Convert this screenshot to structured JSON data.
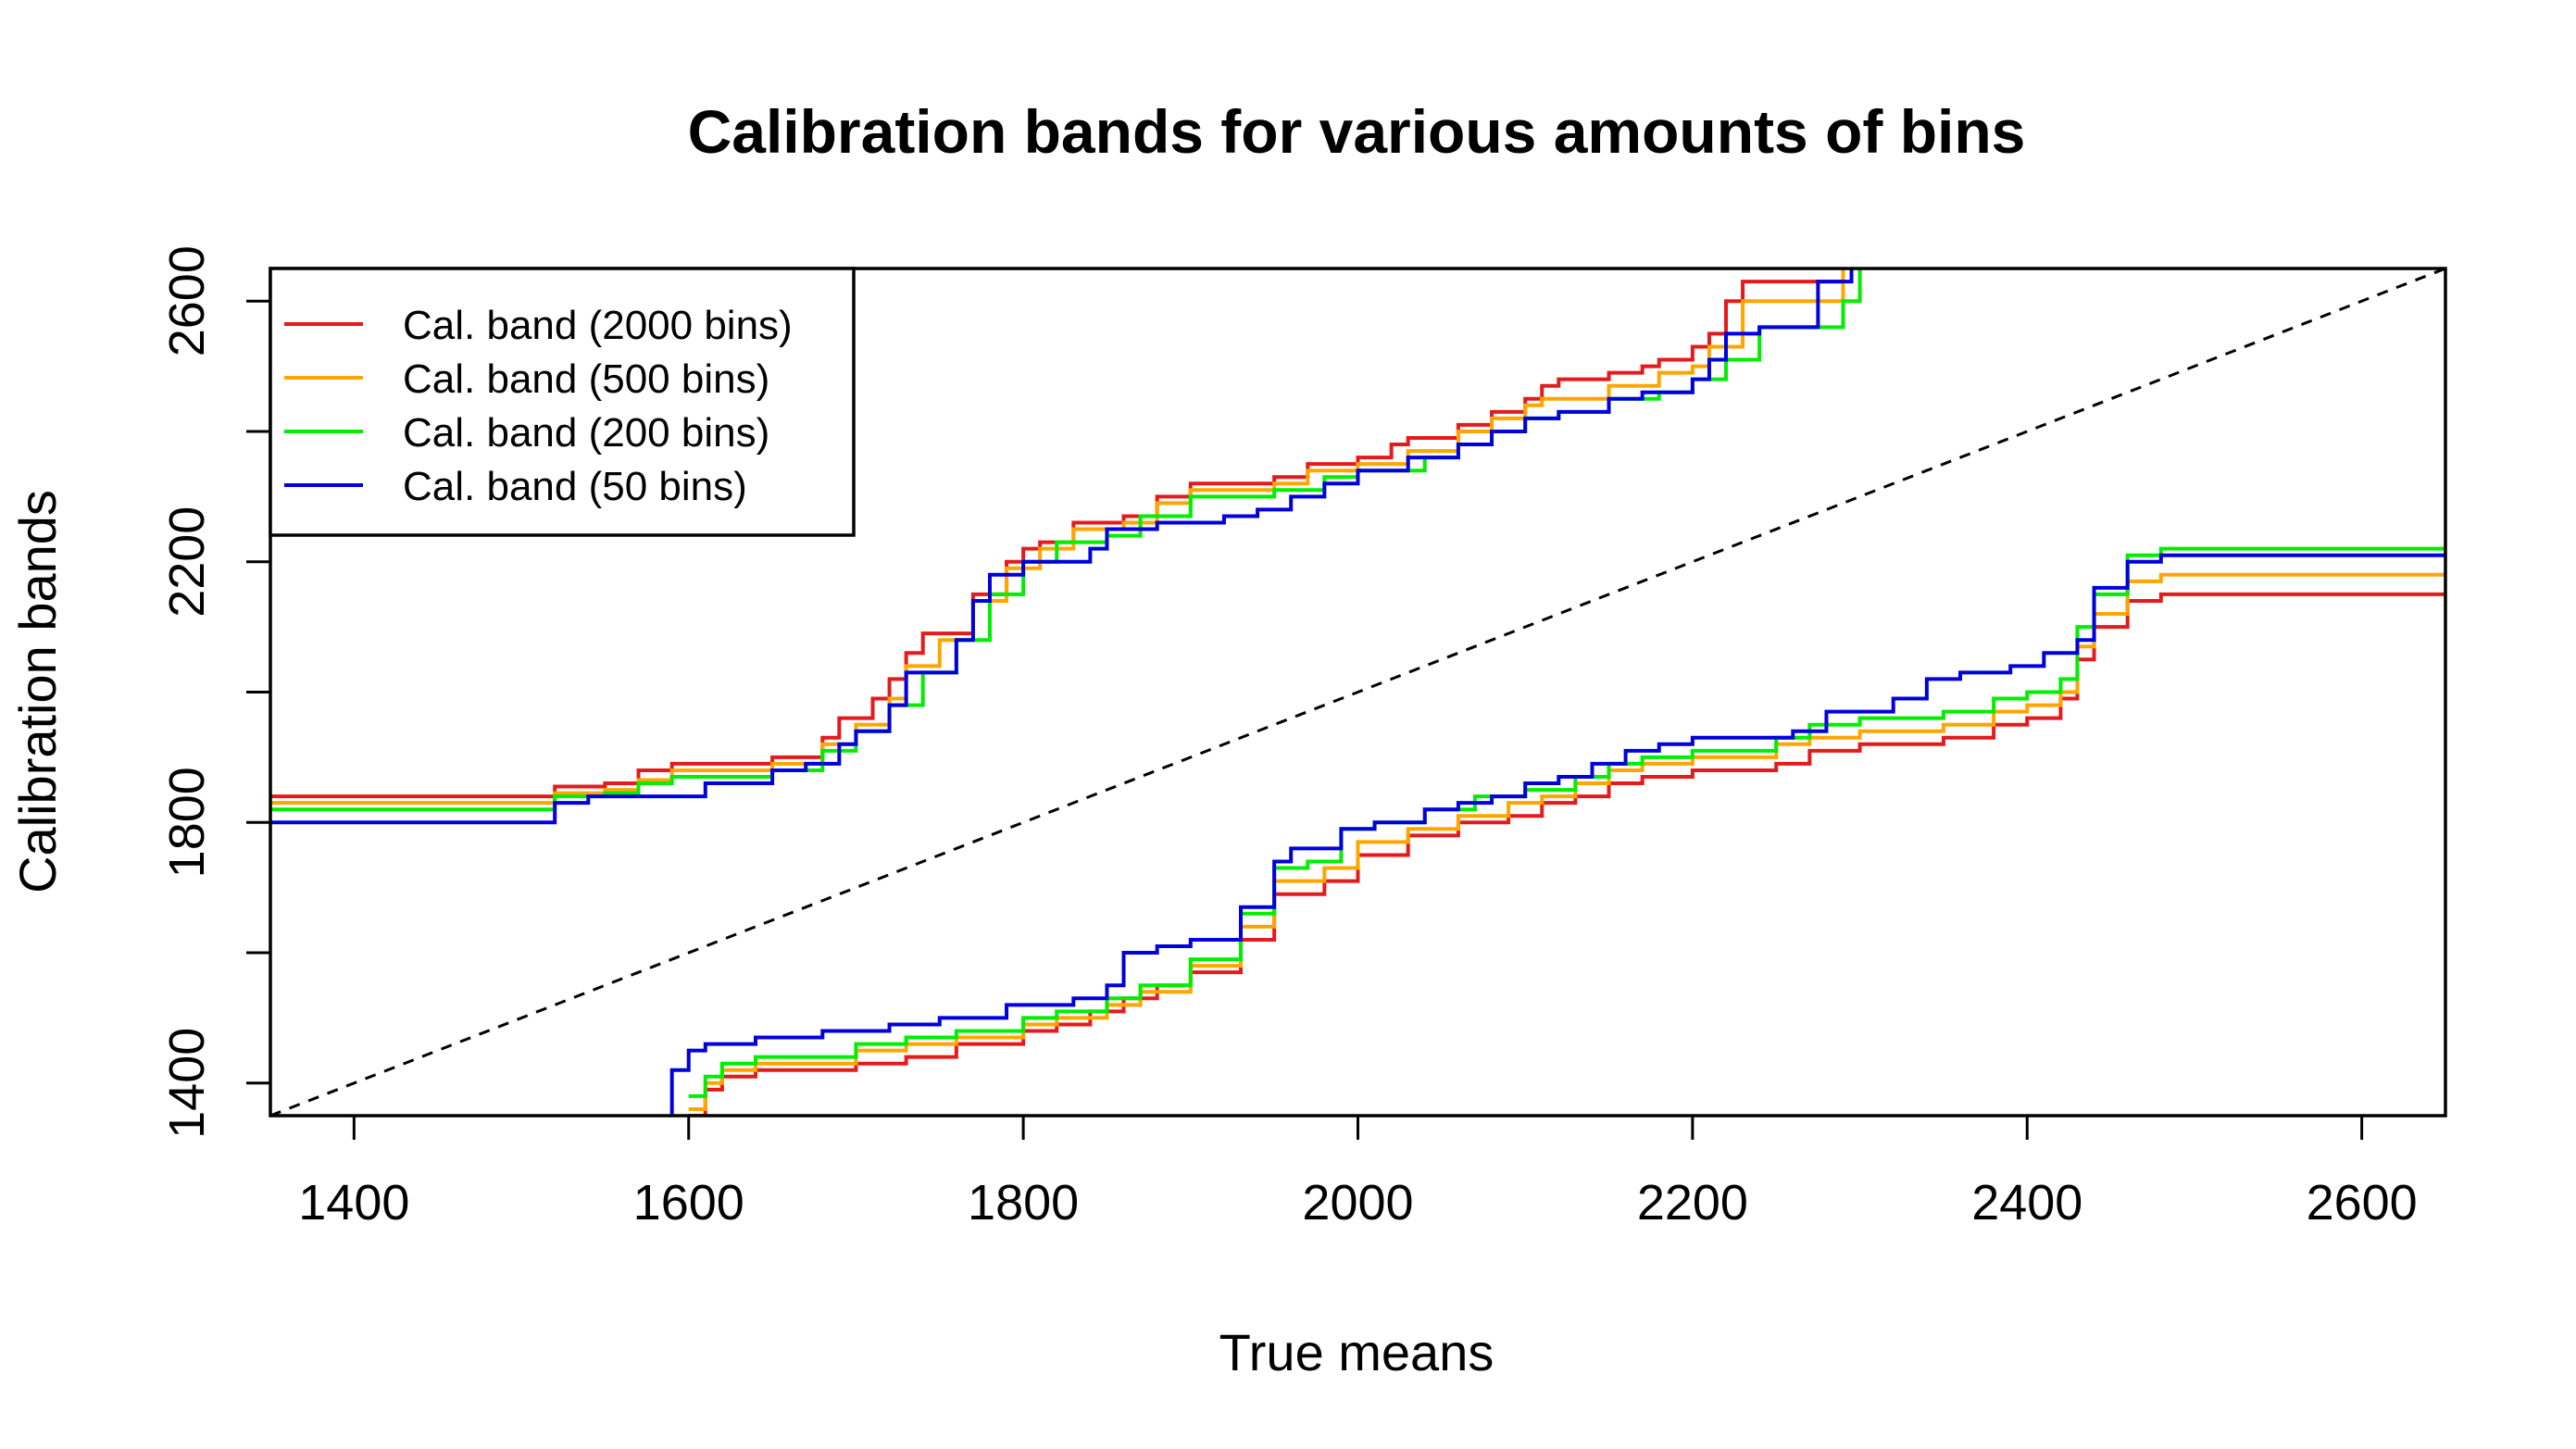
{
  "chart_data": {
    "type": "line",
    "title": "Calibration bands for various amounts of bins",
    "xlabel": "True means",
    "ylabel": "Calibration bands",
    "xlim": [
      1350,
      2650
    ],
    "ylim": [
      1350,
      2650
    ],
    "x_ticks": [
      1400,
      1600,
      1800,
      2000,
      2200,
      2400,
      2600
    ],
    "y_ticks": [
      1400,
      1600,
      1800,
      2000,
      2200,
      2400,
      2600
    ],
    "x_tick_labels": [
      "1400",
      "1600",
      "1800",
      "2000",
      "2200",
      "2400",
      "2600"
    ],
    "y_tick_labels": [
      "1400",
      "",
      "1800",
      "",
      "2200",
      "",
      "2600"
    ],
    "legend_position": "top-left",
    "grid": false,
    "reference_line": {
      "style": "dashed",
      "color": "#000000",
      "from": [
        1350,
        1350
      ],
      "to": [
        2650,
        2650
      ]
    },
    "series": [
      {
        "name": "Cal. band (2000 bins)",
        "color": "#e41a1c",
        "upper": [
          [
            1350,
            1840
          ],
          [
            1500,
            1840
          ],
          [
            1520,
            1855
          ],
          [
            1550,
            1860
          ],
          [
            1570,
            1880
          ],
          [
            1590,
            1890
          ],
          [
            1650,
            1900
          ],
          [
            1680,
            1930
          ],
          [
            1690,
            1960
          ],
          [
            1710,
            1990
          ],
          [
            1720,
            2020
          ],
          [
            1730,
            2060
          ],
          [
            1740,
            2090
          ],
          [
            1770,
            2150
          ],
          [
            1790,
            2200
          ],
          [
            1800,
            2220
          ],
          [
            1810,
            2230
          ],
          [
            1830,
            2260
          ],
          [
            1860,
            2270
          ],
          [
            1880,
            2300
          ],
          [
            1900,
            2320
          ],
          [
            1950,
            2330
          ],
          [
            1970,
            2350
          ],
          [
            2000,
            2360
          ],
          [
            2020,
            2380
          ],
          [
            2030,
            2390
          ],
          [
            2060,
            2410
          ],
          [
            2080,
            2430
          ],
          [
            2100,
            2450
          ],
          [
            2110,
            2470
          ],
          [
            2120,
            2480
          ],
          [
            2150,
            2490
          ],
          [
            2170,
            2500
          ],
          [
            2180,
            2510
          ],
          [
            2200,
            2530
          ],
          [
            2210,
            2550
          ],
          [
            2220,
            2600
          ],
          [
            2230,
            2630
          ],
          [
            2290,
            2650
          ]
        ],
        "lower": [
          [
            1600,
            1350
          ],
          [
            1610,
            1390
          ],
          [
            1620,
            1410
          ],
          [
            1640,
            1420
          ],
          [
            1700,
            1430
          ],
          [
            1730,
            1440
          ],
          [
            1760,
            1460
          ],
          [
            1800,
            1480
          ],
          [
            1820,
            1490
          ],
          [
            1840,
            1510
          ],
          [
            1860,
            1530
          ],
          [
            1880,
            1550
          ],
          [
            1900,
            1570
          ],
          [
            1930,
            1620
          ],
          [
            1950,
            1690
          ],
          [
            1980,
            1710
          ],
          [
            2000,
            1750
          ],
          [
            2030,
            1780
          ],
          [
            2060,
            1800
          ],
          [
            2090,
            1810
          ],
          [
            2110,
            1830
          ],
          [
            2130,
            1840
          ],
          [
            2150,
            1860
          ],
          [
            2170,
            1870
          ],
          [
            2200,
            1880
          ],
          [
            2250,
            1890
          ],
          [
            2270,
            1910
          ],
          [
            2300,
            1920
          ],
          [
            2350,
            1930
          ],
          [
            2380,
            1950
          ],
          [
            2400,
            1960
          ],
          [
            2420,
            1990
          ],
          [
            2430,
            2050
          ],
          [
            2440,
            2100
          ],
          [
            2460,
            2140
          ],
          [
            2480,
            2150
          ],
          [
            2650,
            2150
          ]
        ]
      },
      {
        "name": "Cal. band (500 bins)",
        "color": "#ffa500",
        "upper": [
          [
            1350,
            1830
          ],
          [
            1500,
            1830
          ],
          [
            1520,
            1845
          ],
          [
            1550,
            1850
          ],
          [
            1570,
            1865
          ],
          [
            1590,
            1880
          ],
          [
            1650,
            1890
          ],
          [
            1680,
            1920
          ],
          [
            1700,
            1950
          ],
          [
            1720,
            1990
          ],
          [
            1730,
            2040
          ],
          [
            1750,
            2080
          ],
          [
            1770,
            2140
          ],
          [
            1790,
            2190
          ],
          [
            1810,
            2220
          ],
          [
            1830,
            2250
          ],
          [
            1860,
            2260
          ],
          [
            1880,
            2290
          ],
          [
            1900,
            2310
          ],
          [
            1950,
            2320
          ],
          [
            1970,
            2340
          ],
          [
            2000,
            2350
          ],
          [
            2030,
            2370
          ],
          [
            2060,
            2400
          ],
          [
            2080,
            2420
          ],
          [
            2100,
            2440
          ],
          [
            2110,
            2450
          ],
          [
            2150,
            2470
          ],
          [
            2180,
            2490
          ],
          [
            2200,
            2500
          ],
          [
            2210,
            2530
          ],
          [
            2230,
            2600
          ],
          [
            2280,
            2600
          ],
          [
            2290,
            2650
          ]
        ],
        "lower": [
          [
            1600,
            1360
          ],
          [
            1610,
            1400
          ],
          [
            1620,
            1420
          ],
          [
            1640,
            1430
          ],
          [
            1700,
            1450
          ],
          [
            1730,
            1460
          ],
          [
            1760,
            1470
          ],
          [
            1800,
            1490
          ],
          [
            1820,
            1500
          ],
          [
            1850,
            1520
          ],
          [
            1870,
            1540
          ],
          [
            1900,
            1580
          ],
          [
            1930,
            1640
          ],
          [
            1950,
            1710
          ],
          [
            1980,
            1730
          ],
          [
            2000,
            1770
          ],
          [
            2030,
            1790
          ],
          [
            2060,
            1810
          ],
          [
            2090,
            1830
          ],
          [
            2110,
            1840
          ],
          [
            2130,
            1860
          ],
          [
            2150,
            1880
          ],
          [
            2170,
            1890
          ],
          [
            2200,
            1900
          ],
          [
            2250,
            1920
          ],
          [
            2270,
            1930
          ],
          [
            2300,
            1940
          ],
          [
            2350,
            1950
          ],
          [
            2380,
            1970
          ],
          [
            2400,
            1980
          ],
          [
            2420,
            2000
          ],
          [
            2430,
            2070
          ],
          [
            2440,
            2120
          ],
          [
            2460,
            2170
          ],
          [
            2480,
            2180
          ],
          [
            2650,
            2180
          ]
        ]
      },
      {
        "name": "Cal. band (200 bins)",
        "color": "#00ee00",
        "upper": [
          [
            1350,
            1820
          ],
          [
            1500,
            1820
          ],
          [
            1520,
            1840
          ],
          [
            1550,
            1845
          ],
          [
            1570,
            1860
          ],
          [
            1590,
            1870
          ],
          [
            1650,
            1880
          ],
          [
            1680,
            1910
          ],
          [
            1700,
            1940
          ],
          [
            1720,
            1980
          ],
          [
            1740,
            2030
          ],
          [
            1760,
            2080
          ],
          [
            1780,
            2150
          ],
          [
            1800,
            2200
          ],
          [
            1820,
            2230
          ],
          [
            1850,
            2240
          ],
          [
            1870,
            2270
          ],
          [
            1900,
            2300
          ],
          [
            1950,
            2310
          ],
          [
            1980,
            2330
          ],
          [
            2000,
            2340
          ],
          [
            2040,
            2360
          ],
          [
            2060,
            2380
          ],
          [
            2080,
            2400
          ],
          [
            2100,
            2420
          ],
          [
            2120,
            2430
          ],
          [
            2150,
            2450
          ],
          [
            2180,
            2460
          ],
          [
            2200,
            2480
          ],
          [
            2220,
            2510
          ],
          [
            2240,
            2560
          ],
          [
            2280,
            2560
          ],
          [
            2290,
            2600
          ],
          [
            2300,
            2650
          ]
        ],
        "lower": [
          [
            1600,
            1380
          ],
          [
            1610,
            1410
          ],
          [
            1620,
            1430
          ],
          [
            1640,
            1440
          ],
          [
            1700,
            1460
          ],
          [
            1730,
            1470
          ],
          [
            1760,
            1480
          ],
          [
            1800,
            1500
          ],
          [
            1820,
            1510
          ],
          [
            1850,
            1530
          ],
          [
            1870,
            1550
          ],
          [
            1900,
            1590
          ],
          [
            1930,
            1660
          ],
          [
            1950,
            1730
          ],
          [
            1970,
            1740
          ],
          [
            1990,
            1790
          ],
          [
            2010,
            1800
          ],
          [
            2040,
            1820
          ],
          [
            2070,
            1840
          ],
          [
            2100,
            1850
          ],
          [
            2130,
            1870
          ],
          [
            2150,
            1890
          ],
          [
            2170,
            1900
          ],
          [
            2200,
            1910
          ],
          [
            2250,
            1930
          ],
          [
            2270,
            1950
          ],
          [
            2300,
            1960
          ],
          [
            2350,
            1970
          ],
          [
            2380,
            1990
          ],
          [
            2400,
            2000
          ],
          [
            2420,
            2020
          ],
          [
            2430,
            2100
          ],
          [
            2440,
            2150
          ],
          [
            2460,
            2210
          ],
          [
            2480,
            2220
          ],
          [
            2650,
            2220
          ]
        ]
      },
      {
        "name": "Cal. band (50 bins)",
        "color": "#0000dd",
        "upper": [
          [
            1350,
            1800
          ],
          [
            1510,
            1800
          ],
          [
            1520,
            1830
          ],
          [
            1540,
            1840
          ],
          [
            1600,
            1840
          ],
          [
            1610,
            1860
          ],
          [
            1650,
            1880
          ],
          [
            1670,
            1890
          ],
          [
            1690,
            1920
          ],
          [
            1700,
            1940
          ],
          [
            1720,
            1980
          ],
          [
            1730,
            2030
          ],
          [
            1760,
            2080
          ],
          [
            1770,
            2140
          ],
          [
            1780,
            2180
          ],
          [
            1800,
            2200
          ],
          [
            1840,
            2220
          ],
          [
            1850,
            2250
          ],
          [
            1880,
            2260
          ],
          [
            1920,
            2270
          ],
          [
            1940,
            2280
          ],
          [
            1960,
            2300
          ],
          [
            1980,
            2320
          ],
          [
            2000,
            2340
          ],
          [
            2030,
            2360
          ],
          [
            2060,
            2380
          ],
          [
            2080,
            2400
          ],
          [
            2100,
            2420
          ],
          [
            2120,
            2430
          ],
          [
            2150,
            2450
          ],
          [
            2170,
            2460
          ],
          [
            2200,
            2480
          ],
          [
            2210,
            2510
          ],
          [
            2220,
            2550
          ],
          [
            2240,
            2560
          ],
          [
            2270,
            2560
          ],
          [
            2275,
            2630
          ],
          [
            2295,
            2650
          ]
        ],
        "lower": [
          [
            1590,
            1350
          ],
          [
            1590,
            1420
          ],
          [
            1600,
            1450
          ],
          [
            1610,
            1460
          ],
          [
            1640,
            1470
          ],
          [
            1680,
            1480
          ],
          [
            1720,
            1490
          ],
          [
            1750,
            1500
          ],
          [
            1790,
            1520
          ],
          [
            1830,
            1530
          ],
          [
            1850,
            1550
          ],
          [
            1860,
            1600
          ],
          [
            1880,
            1610
          ],
          [
            1900,
            1620
          ],
          [
            1930,
            1670
          ],
          [
            1950,
            1740
          ],
          [
            1960,
            1760
          ],
          [
            1990,
            1790
          ],
          [
            2010,
            1800
          ],
          [
            2040,
            1820
          ],
          [
            2060,
            1830
          ],
          [
            2080,
            1840
          ],
          [
            2100,
            1860
          ],
          [
            2120,
            1870
          ],
          [
            2140,
            1890
          ],
          [
            2160,
            1910
          ],
          [
            2180,
            1920
          ],
          [
            2200,
            1930
          ],
          [
            2260,
            1940
          ],
          [
            2280,
            1970
          ],
          [
            2320,
            1990
          ],
          [
            2340,
            2020
          ],
          [
            2360,
            2030
          ],
          [
            2390,
            2040
          ],
          [
            2410,
            2060
          ],
          [
            2430,
            2080
          ],
          [
            2440,
            2160
          ],
          [
            2460,
            2200
          ],
          [
            2480,
            2210
          ],
          [
            2650,
            2210
          ]
        ]
      }
    ]
  }
}
